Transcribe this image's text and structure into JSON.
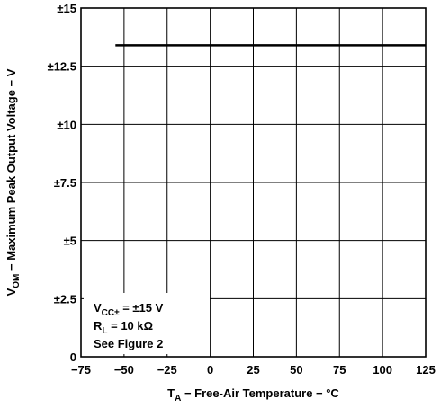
{
  "chart_data": {
    "type": "line",
    "x_ticks": [
      "−75",
      "−50",
      "−25",
      "0",
      "25",
      "50",
      "75",
      "100",
      "125"
    ],
    "y_ticks": [
      "0",
      "±2.5",
      "±5",
      "±7.5",
      "±10",
      "±12.5",
      "±15"
    ],
    "xlim": [
      -75,
      125
    ],
    "ylim": [
      0,
      15
    ],
    "grid": true,
    "xlabel": {
      "main": "T",
      "sub": "A",
      "rest": " − Free-Air Temperature − °C"
    },
    "ylabel": {
      "main": "V",
      "sub": "OM",
      "rest": " − Maximum Peak Output Voltage − V"
    },
    "series": [
      {
        "x": [
          -55,
          125
        ],
        "y": [
          13.4,
          13.4
        ]
      }
    ],
    "annotation": {
      "line1": {
        "main": "V",
        "sub": "CC±",
        "rest": " = ±15 V"
      },
      "line2": {
        "main": "R",
        "sub": "L",
        "rest": " = 10 kΩ"
      },
      "line3": "See Figure 2"
    }
  }
}
